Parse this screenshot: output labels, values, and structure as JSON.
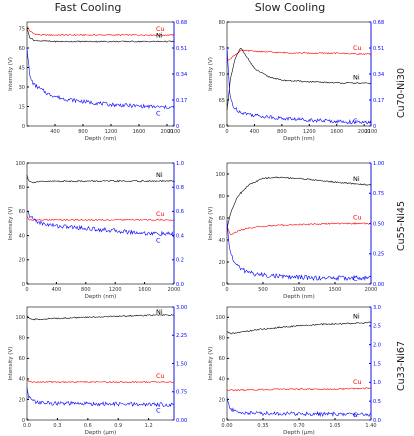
{
  "column_titles": {
    "left": "Fast Cooling",
    "right": "Slow Cooling"
  },
  "row_labels": [
    "Cu70-Ni30",
    "Cu55-Ni45",
    "Cu33-Ni67"
  ],
  "colors": {
    "Ni": "#000000",
    "Cu": "#ff0000",
    "C": "#0000ff",
    "right_axis": "#0000ff"
  },
  "chart_data": [
    {
      "type": "line",
      "row": 0,
      "col": 0,
      "xlabel": "Depth (nm)",
      "ylabel": "Intensity (V)",
      "xlim": [
        0,
        2100
      ],
      "ylim": [
        0,
        80
      ],
      "y2lim": [
        0,
        0.68
      ],
      "xticks": [
        "400",
        "800",
        "1200",
        "1600",
        "2000",
        "2100"
      ],
      "xtick_values": [
        400,
        800,
        1200,
        1600,
        2000,
        2100
      ],
      "yticks": [
        "0",
        "15",
        "30",
        "45",
        "60",
        "75"
      ],
      "ytick_values": [
        0,
        15,
        30,
        45,
        60,
        75
      ],
      "y2ticks": [
        "0",
        "0.17",
        "0.34",
        "0.51",
        "0.68"
      ],
      "y2tick_values": [
        0,
        0.17,
        0.34,
        0.51,
        0.68
      ],
      "series": [
        {
          "name": "Cu",
          "axis": "left",
          "x": [
            0,
            40,
            100,
            200,
            400,
            800,
            1200,
            1600,
            2100
          ],
          "values": [
            77,
            73,
            71,
            70,
            70,
            70,
            70,
            70,
            70
          ]
        },
        {
          "name": "Ni",
          "axis": "left",
          "x": [
            0,
            40,
            100,
            200,
            400,
            800,
            1200,
            1600,
            2100
          ],
          "values": [
            75,
            68,
            66,
            65.5,
            65,
            65,
            65,
            65,
            65
          ]
        },
        {
          "name": "C",
          "axis": "right",
          "x": [
            0,
            40,
            100,
            200,
            300,
            500,
            800,
            1200,
            1600,
            2100
          ],
          "values": [
            0.52,
            0.32,
            0.27,
            0.24,
            0.21,
            0.18,
            0.16,
            0.14,
            0.13,
            0.12
          ]
        }
      ]
    },
    {
      "type": "line",
      "row": 0,
      "col": 1,
      "xlabel": "Depth (nm)",
      "ylabel": "Intensity (V)",
      "xlim": [
        0,
        2100
      ],
      "ylim": [
        60,
        80
      ],
      "y2lim": [
        0,
        0.68
      ],
      "xticks": [
        "0",
        "400",
        "800",
        "1200",
        "1600",
        "2000",
        "2100"
      ],
      "xtick_values": [
        0,
        400,
        800,
        1200,
        1600,
        2000,
        2100
      ],
      "yticks": [
        "60",
        "65",
        "70",
        "75",
        "80"
      ],
      "ytick_values": [
        60,
        65,
        70,
        75,
        80
      ],
      "y2ticks": [
        "0",
        "0.17",
        "0.34",
        "0.51",
        "0.68"
      ],
      "y2tick_values": [
        0,
        0.17,
        0.34,
        0.51,
        0.68
      ],
      "series": [
        {
          "name": "Cu",
          "axis": "left",
          "x": [
            0,
            100,
            200,
            300,
            500,
            800,
            1200,
            1600,
            2100
          ],
          "values": [
            72.5,
            73.5,
            74.5,
            74.5,
            74.3,
            74.1,
            74,
            74,
            73.8
          ]
        },
        {
          "name": "Ni",
          "axis": "left",
          "x": [
            0,
            50,
            120,
            200,
            280,
            400,
            600,
            800,
            1200,
            1600,
            2100
          ],
          "values": [
            63,
            69,
            73,
            75,
            73.5,
            71,
            69.5,
            68.8,
            68.5,
            68.3,
            68.2
          ]
        },
        {
          "name": "C",
          "axis": "right",
          "x": [
            0,
            40,
            100,
            200,
            400,
            800,
            1200,
            1600,
            2100
          ],
          "values": [
            0.52,
            0.2,
            0.12,
            0.09,
            0.07,
            0.05,
            0.04,
            0.03,
            0.02
          ]
        }
      ]
    },
    {
      "type": "line",
      "row": 1,
      "col": 0,
      "xlabel": "Depth (nm)",
      "ylabel": "Intensity (V)",
      "xlim": [
        0,
        2000
      ],
      "ylim": [
        0,
        100
      ],
      "y2lim": [
        0,
        1.0
      ],
      "xticks": [
        "0",
        "400",
        "800",
        "1200",
        "1600",
        "2000"
      ],
      "xtick_values": [
        0,
        400,
        800,
        1200,
        1600,
        2000
      ],
      "yticks": [
        "0",
        "20",
        "40",
        "60",
        "80",
        "100"
      ],
      "ytick_values": [
        0,
        20,
        40,
        60,
        80,
        100
      ],
      "y2ticks": [
        "0.0",
        "0.2",
        "0.4",
        "0.6",
        "0.8",
        "1.0"
      ],
      "y2tick_values": [
        0,
        0.2,
        0.4,
        0.6,
        0.8,
        1.0
      ],
      "series": [
        {
          "name": "Ni",
          "axis": "left",
          "x": [
            0,
            20,
            60,
            150,
            400,
            800,
            1200,
            1600,
            2000
          ],
          "values": [
            90,
            86,
            84,
            84.5,
            85,
            85,
            85,
            85,
            85
          ]
        },
        {
          "name": "Cu",
          "axis": "left",
          "x": [
            0,
            30,
            100,
            400,
            800,
            1200,
            1600,
            2000
          ],
          "values": [
            56,
            53,
            53,
            53,
            53,
            53,
            53,
            53
          ]
        },
        {
          "name": "C",
          "axis": "right",
          "x": [
            0,
            40,
            100,
            200,
            400,
            800,
            1200,
            1600,
            2000
          ],
          "values": [
            0.6,
            0.56,
            0.53,
            0.5,
            0.48,
            0.46,
            0.44,
            0.42,
            0.41
          ]
        }
      ]
    },
    {
      "type": "line",
      "row": 1,
      "col": 1,
      "xlabel": "Depth (nm)",
      "ylabel": "Intensity (V)",
      "xlim": [
        0,
        2000
      ],
      "ylim": [
        0,
        110
      ],
      "y2lim": [
        0,
        1.0
      ],
      "xticks": [
        "0",
        "500",
        "1000",
        "1500",
        "2000"
      ],
      "xtick_values": [
        0,
        500,
        1000,
        1500,
        2000
      ],
      "yticks": [
        "0",
        "20",
        "40",
        "60",
        "80",
        "100"
      ],
      "ytick_values": [
        0,
        20,
        40,
        60,
        80,
        100
      ],
      "y2ticks": [
        "0.00",
        "0.25",
        "0.50",
        "0.75",
        "1.00"
      ],
      "y2tick_values": [
        0,
        0.25,
        0.5,
        0.75,
        1.0
      ],
      "series": [
        {
          "name": "Ni",
          "axis": "left",
          "x": [
            0,
            50,
            150,
            300,
            500,
            700,
            1000,
            1300,
            1600,
            2000
          ],
          "values": [
            50,
            65,
            80,
            90,
            96,
            97,
            96,
            94,
            92,
            90
          ]
        },
        {
          "name": "Cu",
          "axis": "left",
          "x": [
            0,
            50,
            150,
            300,
            600,
            1000,
            1500,
            2000
          ],
          "values": [
            52,
            45,
            48,
            51,
            53,
            54,
            55,
            55
          ]
        },
        {
          "name": "C",
          "axis": "right",
          "x": [
            0,
            30,
            100,
            200,
            400,
            800,
            1200,
            1600,
            2000
          ],
          "values": [
            0.52,
            0.3,
            0.18,
            0.12,
            0.08,
            0.06,
            0.05,
            0.05,
            0.05
          ]
        }
      ]
    },
    {
      "type": "line",
      "row": 2,
      "col": 0,
      "xlabel": "Depth (µm)",
      "ylabel": "Intensity (V)",
      "xlim": [
        0,
        1.45
      ],
      "ylim": [
        0,
        110
      ],
      "y2lim": [
        0,
        3.0
      ],
      "xticks": [
        "0.0",
        "0.3",
        "0.6",
        "0.9",
        "1.2"
      ],
      "xtick_values": [
        0,
        0.3,
        0.6,
        0.9,
        1.2
      ],
      "yticks": [
        "0",
        "20",
        "40",
        "60",
        "80",
        "100"
      ],
      "ytick_values": [
        0,
        20,
        40,
        60,
        80,
        100
      ],
      "y2ticks": [
        "0.00",
        "0.75",
        "1.50",
        "2.25",
        "3.00"
      ],
      "y2tick_values": [
        0,
        0.75,
        1.5,
        2.25,
        3.0
      ],
      "series": [
        {
          "name": "Ni",
          "axis": "left",
          "x": [
            0,
            0.03,
            0.1,
            0.3,
            0.6,
            0.9,
            1.2,
            1.45
          ],
          "values": [
            101,
            98,
            98,
            99,
            100,
            101,
            102,
            102
          ]
        },
        {
          "name": "Cu",
          "axis": "left",
          "x": [
            0,
            0.03,
            0.1,
            0.4,
            0.8,
            1.2,
            1.45
          ],
          "values": [
            39,
            37,
            37,
            37,
            37,
            37,
            37
          ]
        },
        {
          "name": "C",
          "axis": "right",
          "x": [
            0,
            0.02,
            0.06,
            0.12,
            0.3,
            0.6,
            0.9,
            1.2,
            1.45
          ],
          "values": [
            0.85,
            0.6,
            0.5,
            0.46,
            0.44,
            0.43,
            0.42,
            0.41,
            0.41
          ]
        }
      ]
    },
    {
      "type": "line",
      "row": 2,
      "col": 1,
      "xlabel": "Depth (µm)",
      "ylabel": "Intensity (V)",
      "xlim": [
        0,
        1.4
      ],
      "ylim": [
        0,
        110
      ],
      "y2lim": [
        0,
        3.0
      ],
      "xticks": [
        "0.00",
        "0.35",
        "0.70",
        "1.05",
        "1.40"
      ],
      "xtick_values": [
        0,
        0.35,
        0.7,
        1.05,
        1.4
      ],
      "yticks": [
        "0",
        "20",
        "40",
        "60",
        "80",
        "100"
      ],
      "ytick_values": [
        0,
        20,
        40,
        60,
        80,
        100
      ],
      "y2ticks": [
        "0.0",
        "0.5",
        "1.0",
        "1.5",
        "2.0",
        "2.5",
        "3.0"
      ],
      "y2tick_values": [
        0,
        0.5,
        1.0,
        1.5,
        2.0,
        2.5,
        3.0
      ],
      "series": [
        {
          "name": "Ni",
          "axis": "left",
          "x": [
            0,
            0.03,
            0.1,
            0.3,
            0.6,
            0.9,
            1.2,
            1.4
          ],
          "values": [
            86,
            84,
            85,
            88,
            91,
            93,
            94,
            95
          ]
        },
        {
          "name": "Cu",
          "axis": "left",
          "x": [
            0,
            0.1,
            0.5,
            1.0,
            1.4
          ],
          "values": [
            29,
            29,
            30,
            30,
            31
          ]
        },
        {
          "name": "C",
          "axis": "right",
          "x": [
            0,
            0.02,
            0.06,
            0.12,
            0.3,
            0.6,
            0.9,
            1.2,
            1.4
          ],
          "values": [
            0.6,
            0.35,
            0.25,
            0.2,
            0.18,
            0.17,
            0.16,
            0.15,
            0.15
          ]
        }
      ]
    }
  ]
}
